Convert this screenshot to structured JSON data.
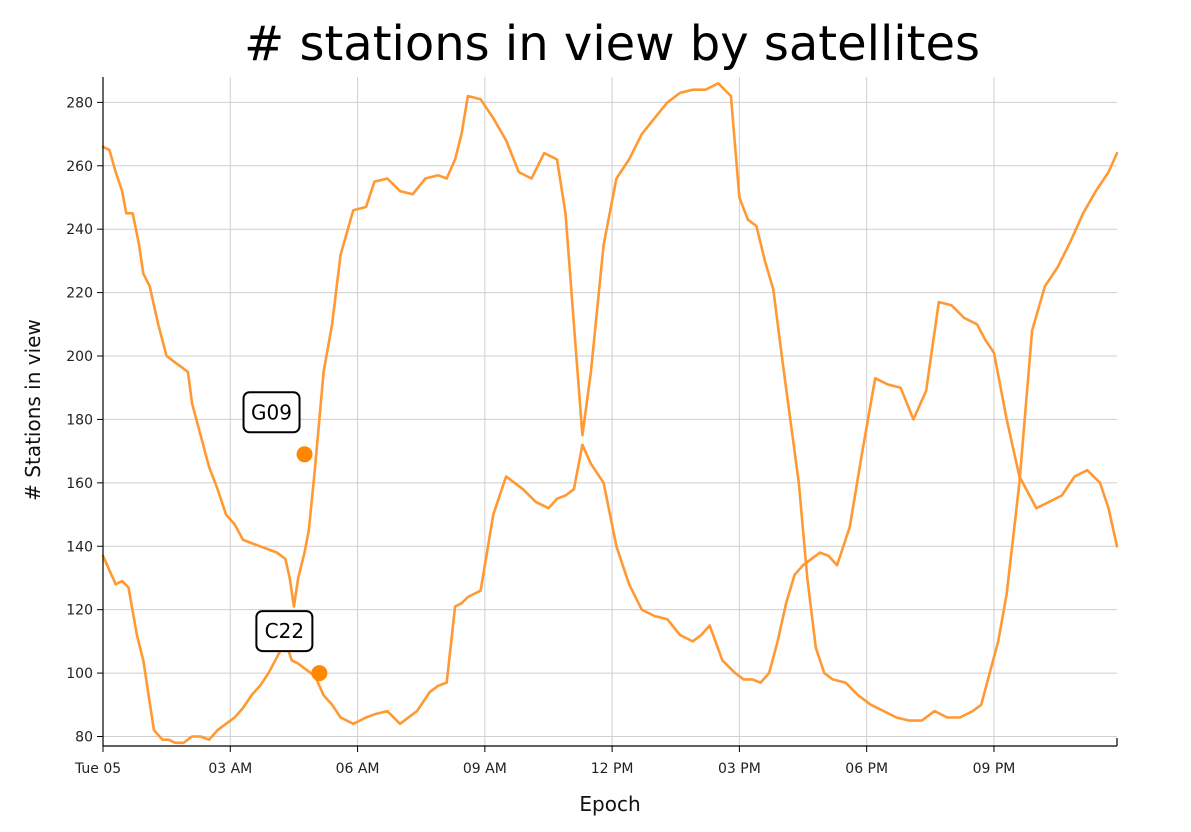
{
  "chart_data": {
    "type": "line",
    "title": "# stations in view by satellites",
    "xlabel": "Epoch",
    "ylabel": "# Stations in view",
    "x_unit": "hours since Tue 05 00:00",
    "xlim": [
      0,
      23.9
    ],
    "ylim": [
      77,
      288
    ],
    "grid": true,
    "line_color": "#ff9933",
    "marker_color": "#ff8800",
    "x_ticks": [
      {
        "value": 0,
        "label": "Tue 05"
      },
      {
        "value": 3,
        "label": "03 AM"
      },
      {
        "value": 6,
        "label": "06 AM"
      },
      {
        "value": 9,
        "label": "09 AM"
      },
      {
        "value": 12,
        "label": "12 PM"
      },
      {
        "value": 15,
        "label": "03 PM"
      },
      {
        "value": 18,
        "label": "06 PM"
      },
      {
        "value": 21,
        "label": "09 PM"
      }
    ],
    "y_ticks": [
      80,
      100,
      120,
      140,
      160,
      180,
      200,
      220,
      240,
      260,
      280
    ],
    "series": [
      {
        "name": "G09",
        "x": [
          0,
          0.3,
          0.45,
          0.6,
          0.8,
          0.95,
          1.2,
          1.4,
          1.55,
          1.7,
          1.9,
          2.1,
          2.3,
          2.5,
          2.7,
          2.9,
          3.1,
          3.3,
          3.5,
          3.7,
          3.9,
          4.1,
          4.3,
          4.45,
          4.6,
          4.8,
          5.0,
          5.2,
          5.4,
          5.6,
          5.9,
          6.2,
          6.4,
          6.7,
          7.0,
          7.4,
          7.7,
          7.9,
          8.1,
          8.3,
          8.45,
          8.6,
          8.9,
          9.2,
          9.5,
          9.7,
          9.9,
          10.2,
          10.5,
          10.7,
          10.9,
          11.1,
          11.3,
          11.5,
          11.8,
          12.1,
          12.4,
          12.7,
          13.0,
          13.3,
          13.6,
          13.9,
          14.1,
          14.3,
          14.6,
          14.9,
          15.1,
          15.3,
          15.5,
          15.7,
          15.9,
          16.1,
          16.3,
          16.5,
          16.7,
          16.9,
          17.1,
          17.3,
          17.6,
          17.9,
          18.2,
          18.5,
          18.8,
          19.1,
          19.4,
          19.7,
          20.0,
          20.3,
          20.6,
          20.8,
          21.0,
          21.3,
          21.6,
          21.8,
          22.0,
          22.3,
          22.6,
          22.9,
          23.2,
          23.5,
          23.7,
          23.9
        ],
        "y": [
          137,
          128,
          129,
          127,
          112,
          104,
          82,
          79,
          79,
          78,
          78,
          80,
          80,
          79,
          82,
          84,
          86,
          89,
          93,
          96,
          100,
          105,
          110,
          104,
          103,
          101,
          99,
          93,
          90,
          86,
          84,
          86,
          87,
          88,
          84,
          88,
          94,
          96,
          97,
          121,
          122,
          124,
          126,
          150,
          162,
          160,
          158,
          154,
          152,
          155,
          156,
          158,
          172,
          166,
          160,
          140,
          128,
          120,
          118,
          117,
          112,
          110,
          112,
          115,
          104,
          100,
          98,
          98,
          97,
          100,
          110,
          122,
          131,
          134,
          136,
          138,
          137,
          134,
          146,
          170,
          193,
          191,
          190,
          180,
          189,
          217,
          216,
          212,
          210,
          205,
          201,
          180,
          162,
          157,
          152,
          154,
          156,
          162,
          164,
          160,
          152,
          140
        ]
      },
      {
        "name": "C22",
        "x": [
          0,
          0.15,
          0.3,
          0.45,
          0.55,
          0.7,
          0.85,
          0.95,
          1.1,
          1.3,
          1.5,
          1.7,
          1.9,
          2.0,
          2.1,
          2.3,
          2.5,
          2.7,
          2.9,
          3.1,
          3.3,
          3.5,
          3.7,
          3.9,
          4.1,
          4.3,
          4.4,
          4.5,
          4.6,
          4.75,
          4.85,
          5.0,
          5.2,
          5.4,
          5.6,
          5.9,
          6.2,
          6.4,
          6.7,
          7.0,
          7.3,
          7.6,
          7.9,
          8.1,
          8.3,
          8.45,
          8.6,
          8.9,
          9.2,
          9.5,
          9.8,
          10.1,
          10.4,
          10.7,
          10.9,
          11.1,
          11.3,
          11.5,
          11.8,
          12.1,
          12.4,
          12.7,
          13.0,
          13.3,
          13.6,
          13.9,
          14.2,
          14.5,
          14.8,
          15.0,
          15.2,
          15.4,
          15.6,
          15.8,
          16.0,
          16.2,
          16.4,
          16.6,
          16.8,
          17.0,
          17.2,
          17.5,
          17.8,
          18.1,
          18.4,
          18.7,
          19.0,
          19.3,
          19.6,
          19.9,
          20.2,
          20.5,
          20.7,
          20.9,
          21.1,
          21.3,
          21.6,
          21.9,
          22.2,
          22.5,
          22.8,
          23.1,
          23.4,
          23.7,
          23.9
        ],
        "y": [
          266,
          265,
          258,
          252,
          245,
          245,
          235,
          226,
          222,
          210,
          200,
          198,
          196,
          195,
          185,
          175,
          165,
          158,
          150,
          147,
          142,
          141,
          140,
          139,
          138,
          136,
          130,
          121,
          130,
          138,
          145,
          165,
          195,
          210,
          232,
          246,
          247,
          255,
          256,
          252,
          251,
          256,
          257,
          256,
          262,
          270,
          282,
          281,
          275,
          268,
          258,
          256,
          264,
          262,
          245,
          210,
          175,
          195,
          235,
          256,
          262,
          270,
          275,
          280,
          283,
          284,
          284,
          286,
          282,
          250,
          243,
          241,
          230,
          221,
          200,
          180,
          160,
          130,
          108,
          100,
          98,
          97,
          93,
          90,
          88,
          86,
          85,
          85,
          88,
          86,
          86,
          88,
          90,
          100,
          110,
          125,
          160,
          208,
          222,
          228,
          236,
          245,
          252,
          258,
          264
        ]
      }
    ],
    "highlight_points": [
      {
        "series": "G09",
        "x": 4.75,
        "y": 169,
        "label": "G09"
      },
      {
        "series": "C22",
        "x": 5.1,
        "y": 100,
        "label": "C22"
      }
    ]
  }
}
